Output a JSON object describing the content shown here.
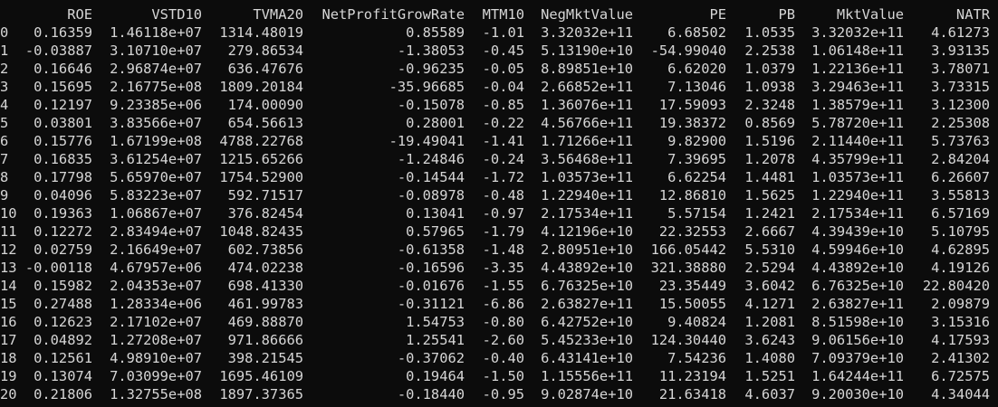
{
  "table": {
    "columns": [
      "ROE",
      "VSTD10",
      "TVMA20",
      "NetProfitGrowRate",
      "MTM10",
      "NegMktValue",
      "PE",
      "PB",
      "MktValue",
      "NATR"
    ],
    "rows": [
      [
        "0",
        "0.16359",
        "1.46118e+07",
        "1314.48019",
        "0.85589",
        "-1.01",
        "3.32032e+11",
        "6.68502",
        "1.0535",
        "3.32032e+11",
        "4.61273"
      ],
      [
        "1",
        "-0.03887",
        "3.10710e+07",
        "279.86534",
        "-1.38053",
        "-0.45",
        "5.13190e+10",
        "-54.99040",
        "2.2538",
        "1.06148e+11",
        "3.93135"
      ],
      [
        "2",
        "0.16646",
        "2.96874e+07",
        "636.47676",
        "-0.96235",
        "-0.05",
        "8.89851e+10",
        "6.62020",
        "1.0379",
        "1.22136e+11",
        "3.78071"
      ],
      [
        "3",
        "0.15695",
        "2.16775e+08",
        "1809.20184",
        "-35.96685",
        "-0.04",
        "2.66852e+11",
        "7.13046",
        "1.0938",
        "3.29463e+11",
        "3.73315"
      ],
      [
        "4",
        "0.12197",
        "9.23385e+06",
        "174.00090",
        "-0.15078",
        "-0.85",
        "1.36076e+11",
        "17.59093",
        "2.3248",
        "1.38579e+11",
        "3.12300"
      ],
      [
        "5",
        "0.03801",
        "3.83566e+07",
        "654.56613",
        "0.28001",
        "-0.22",
        "4.56766e+11",
        "19.38372",
        "0.8569",
        "5.78720e+11",
        "2.25308"
      ],
      [
        "6",
        "0.15776",
        "1.67199e+08",
        "4788.22768",
        "-19.49041",
        "-1.41",
        "1.71266e+11",
        "9.82900",
        "1.5196",
        "2.11440e+11",
        "5.73763"
      ],
      [
        "7",
        "0.16835",
        "3.61254e+07",
        "1215.65266",
        "-1.24846",
        "-0.24",
        "3.56468e+11",
        "7.39695",
        "1.2078",
        "4.35799e+11",
        "2.84204"
      ],
      [
        "8",
        "0.17798",
        "5.65970e+07",
        "1754.52900",
        "-0.14544",
        "-1.72",
        "1.03573e+11",
        "6.62254",
        "1.4481",
        "1.03573e+11",
        "6.26607"
      ],
      [
        "9",
        "0.04096",
        "5.83223e+07",
        "592.71517",
        "-0.08978",
        "-0.48",
        "1.22940e+11",
        "12.86810",
        "1.5625",
        "1.22940e+11",
        "3.55813"
      ],
      [
        "10",
        "0.19363",
        "1.06867e+07",
        "376.82454",
        "0.13041",
        "-0.97",
        "2.17534e+11",
        "5.57154",
        "1.2421",
        "2.17534e+11",
        "6.57169"
      ],
      [
        "11",
        "0.12272",
        "2.83494e+07",
        "1048.82435",
        "0.57965",
        "-1.79",
        "4.12196e+10",
        "22.32553",
        "2.6667",
        "4.39439e+10",
        "5.10795"
      ],
      [
        "12",
        "0.02759",
        "2.16649e+07",
        "602.73856",
        "-0.61358",
        "-1.48",
        "2.80951e+10",
        "166.05442",
        "5.5310",
        "4.59946e+10",
        "4.62895"
      ],
      [
        "13",
        "-0.00118",
        "4.67957e+06",
        "474.02238",
        "-0.16596",
        "-3.35",
        "4.43892e+10",
        "321.38880",
        "2.5294",
        "4.43892e+10",
        "4.19126"
      ],
      [
        "14",
        "0.15982",
        "2.04353e+07",
        "698.41330",
        "-0.01676",
        "-1.55",
        "6.76325e+10",
        "23.35449",
        "3.6042",
        "6.76325e+10",
        "22.80420"
      ],
      [
        "15",
        "0.27488",
        "1.28334e+06",
        "461.99783",
        "-0.31121",
        "-6.86",
        "2.63827e+11",
        "15.50055",
        "4.1271",
        "2.63827e+11",
        "2.09879"
      ],
      [
        "16",
        "0.12623",
        "2.17102e+07",
        "469.88870",
        "1.54753",
        "-0.80",
        "6.42752e+10",
        "9.40824",
        "1.2081",
        "8.51598e+10",
        "3.15316"
      ],
      [
        "17",
        "0.04892",
        "1.27208e+07",
        "971.86666",
        "1.25541",
        "-2.60",
        "5.45233e+10",
        "124.30440",
        "3.6243",
        "9.06156e+10",
        "4.17593"
      ],
      [
        "18",
        "0.12561",
        "4.98910e+07",
        "398.21545",
        "-0.37062",
        "-0.40",
        "6.43141e+10",
        "7.54236",
        "1.4080",
        "7.09379e+10",
        "2.41302"
      ],
      [
        "19",
        "0.13074",
        "7.03099e+07",
        "1695.46109",
        "0.19464",
        "-1.50",
        "1.15556e+11",
        "11.23194",
        "1.5251",
        "1.64244e+11",
        "6.72575"
      ],
      [
        "20",
        "0.21806",
        "1.32755e+08",
        "1897.37365",
        "-0.18440",
        "-0.95",
        "9.02874e+10",
        "21.63418",
        "4.6037",
        "9.20030e+10",
        "4.34044"
      ]
    ]
  }
}
